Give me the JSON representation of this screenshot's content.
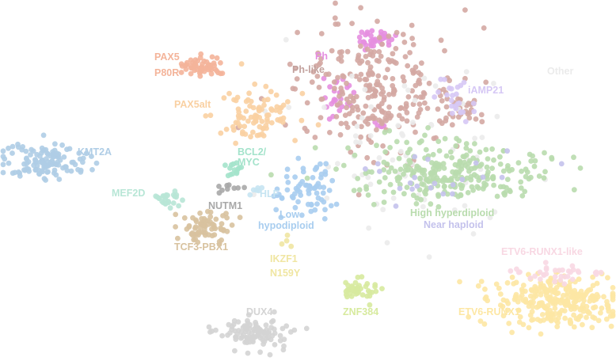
{
  "chart_data": {
    "type": "scatter",
    "title": "",
    "xlabel": "",
    "ylabel": "",
    "axes_visible": false,
    "grid": false,
    "legend": "none (groups labeled directly on the plot)",
    "point_style": "filled circles, semi-transparent pastel colors",
    "groups": [
      {
        "label": "PAX5\nP80R",
        "color": "#f4b49a",
        "clusters": [
          {
            "center": [
              258,
              84
            ],
            "spread": [
              14,
              6
            ],
            "count": 55
          }
        ]
      },
      {
        "label": "Ph",
        "color": "#e58fe0",
        "clusters": [
          {
            "center": [
              470,
              48
            ],
            "spread": [
              14,
              6
            ],
            "count": 35
          },
          {
            "center": [
              428,
              120
            ],
            "spread": [
              10,
              14
            ],
            "count": 25
          },
          {
            "center": [
              480,
              160
            ],
            "spread": [
              4,
              4
            ],
            "count": 6
          }
        ]
      },
      {
        "label": "Ph-like",
        "color": "#d4a8a3",
        "clusters": [
          {
            "center": [
              475,
              115
            ],
            "spread": [
              50,
              40
            ],
            "count": 260
          },
          {
            "center": [
              580,
              135
            ],
            "spread": [
              18,
              12
            ],
            "count": 30
          }
        ]
      },
      {
        "label": "Other",
        "color": "#ebebeb",
        "clusters": [
          {
            "center": [
              520,
              190
            ],
            "spread": [
              70,
              55
            ],
            "count": 70
          }
        ]
      },
      {
        "label": "iAMP21",
        "color": "#d6c8f5",
        "clusters": [
          {
            "center": [
              580,
              125
            ],
            "spread": [
              14,
              12
            ],
            "count": 25
          }
        ]
      },
      {
        "label": "PAX5alt",
        "color": "#f9d0a2",
        "clusters": [
          {
            "center": [
              320,
              145
            ],
            "spread": [
              26,
              16
            ],
            "count": 90
          }
        ]
      },
      {
        "label": "KMT2A",
        "color": "#afcde6",
        "clusters": [
          {
            "center": [
              60,
              205
            ],
            "spread": [
              26,
              12
            ],
            "count": 130
          }
        ]
      },
      {
        "label": "BCL2/\nMYC",
        "color": "#a4e3cb",
        "clusters": [
          {
            "center": [
              292,
              214
            ],
            "spread": [
              7,
              6
            ],
            "count": 14
          }
        ]
      },
      {
        "label": "MEF2D",
        "color": "#b8e6d6",
        "clusters": [
          {
            "center": [
              208,
              251
            ],
            "spread": [
              11,
              5
            ],
            "count": 25
          }
        ]
      },
      {
        "label": "NUTM1",
        "color": "#a8a8a8",
        "clusters": [
          {
            "center": [
              285,
              235
            ],
            "spread": [
              10,
              5
            ],
            "count": 9
          }
        ]
      },
      {
        "label": "HLF",
        "color": "#c6e4f2",
        "clusters": [
          {
            "center": [
              322,
              240
            ],
            "spread": [
              5,
              4
            ],
            "count": 6
          }
        ]
      },
      {
        "label": "Low\nhypodiploid",
        "color": "#a8cdef",
        "clusters": [
          {
            "center": [
              385,
              240
            ],
            "spread": [
              18,
              18
            ],
            "count": 70
          }
        ]
      },
      {
        "label": "TCF3-PBX1",
        "color": "#d8c29f",
        "clusters": [
          {
            "center": [
              262,
              285
            ],
            "spread": [
              18,
              11
            ],
            "count": 70
          }
        ]
      },
      {
        "label": "IKZF1\nN159Y",
        "color": "#f0e6a2",
        "clusters": [
          {
            "center": [
              361,
              305
            ],
            "spread": [
              4,
              3
            ],
            "count": 4
          }
        ]
      },
      {
        "label": "High hyperdiploid",
        "color": "#b9dcae",
        "clusters": [
          {
            "center": [
              568,
              218
            ],
            "spread": [
              60,
              18
            ],
            "count": 270
          }
        ]
      },
      {
        "label": "Near haploid",
        "color": "#c4c2ec",
        "clusters": [
          {
            "center": [
              560,
              220
            ],
            "spread": [
              55,
              18
            ],
            "count": 22
          }
        ]
      },
      {
        "label": "ZNF384",
        "color": "#d7ea9e",
        "clusters": [
          {
            "center": [
              452,
              367
            ],
            "spread": [
              13,
              7
            ],
            "count": 40
          }
        ]
      },
      {
        "label": "DUX4",
        "color": "#d4d4d4",
        "clusters": [
          {
            "center": [
              322,
              419
            ],
            "spread": [
              22,
              10
            ],
            "count": 110
          }
        ]
      },
      {
        "label": "ETV6-RUNX1",
        "color": "#fde7a4",
        "clusters": [
          {
            "center": [
              700,
              380
            ],
            "spread": [
              36,
              16
            ],
            "count": 280
          }
        ]
      },
      {
        "label": "ETV6-RUNX1-like",
        "color": "#f8d8e3",
        "clusters": [
          {
            "center": [
              700,
              346
            ],
            "spread": [
              30,
              6
            ],
            "count": 35
          }
        ]
      }
    ]
  },
  "labels": [
    {
      "text": "PAX5",
      "color": "#f4b49a"
    },
    {
      "text": "P80R",
      "color": "#f4b49a"
    },
    {
      "text": "Ph",
      "color": "#e58fe0"
    },
    {
      "text": "Ph-like",
      "color": "#c2a19d"
    },
    {
      "text": "Other",
      "color": "#ebebeb"
    },
    {
      "text": "iAMP21",
      "color": "#d6c8f5"
    },
    {
      "text": "PAX5alt",
      "color": "#f9d0a2"
    },
    {
      "text": "KMT2A",
      "color": "#afcde6"
    },
    {
      "text": "BCL2/",
      "color": "#a4e3cb"
    },
    {
      "text": "MYC",
      "color": "#a4e3cb"
    },
    {
      "text": "MEF2D",
      "color": "#b8e6d6"
    },
    {
      "text": "HLF",
      "color": "#c6e4f2"
    },
    {
      "text": "NUTM1",
      "color": "#a8a8a8"
    },
    {
      "text": "Low",
      "color": "#a8cdef"
    },
    {
      "text": "hypodiploid",
      "color": "#a8cdef"
    },
    {
      "text": "TCF3-PBX1",
      "color": "#d8c29f"
    },
    {
      "text": "IKZF1",
      "color": "#f0e6a2"
    },
    {
      "text": "N159Y",
      "color": "#f0e6a2"
    },
    {
      "text": "High hyperdiploid",
      "color": "#b9dcae"
    },
    {
      "text": "Near haploid",
      "color": "#c4c2ec"
    },
    {
      "text": "ZNF384",
      "color": "#d7ea9e"
    },
    {
      "text": "DUX4",
      "color": "#d4d4d4"
    },
    {
      "text": "ETV6-RUNX1",
      "color": "#fde7a4"
    },
    {
      "text": "ETV6-RUNX1-like",
      "color": "#f8d8e3"
    }
  ]
}
